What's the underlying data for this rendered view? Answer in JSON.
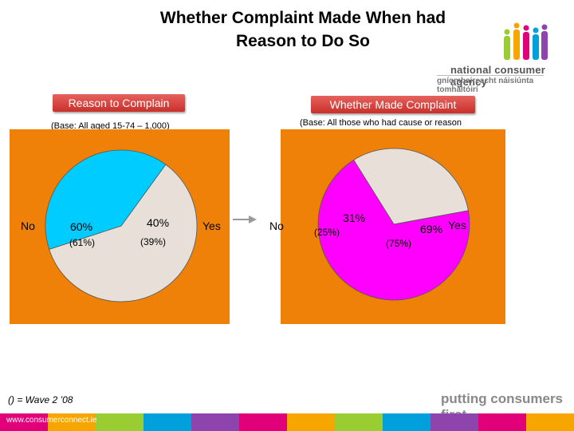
{
  "page": {
    "title_line1": "Whether Complaint Made When had",
    "title_line2": "Reason to Do So",
    "logo_line1": "national consumer agency",
    "logo_line2": "gníomhaireacht náisiúnta tomhaltóirí",
    "footnote": "() = Wave 2 ’08",
    "tagline": "putting consumers first",
    "url": "www.consumerconnect.ie",
    "arrow_icon": "right-arrow-icon"
  },
  "colors": {
    "panel": "#f08108",
    "no_slice": "#e8e0d8",
    "yes_left": "#00ccff",
    "yes_right": "#ff00ff"
  },
  "chart_data": [
    {
      "type": "pie",
      "title": "Reason to Complain",
      "base": "(Base: All aged 15-74 – 1,000)",
      "categories": [
        "No",
        "Yes"
      ],
      "values": [
        60,
        40
      ],
      "value_labels": [
        "60%",
        "40%"
      ],
      "previous_labels": [
        "(61%)",
        "(39%)"
      ],
      "legend": "none"
    },
    {
      "type": "pie",
      "title": "Whether Made Complaint",
      "base": "(Base: All those who had cause or reason",
      "categories": [
        "No",
        "Yes"
      ],
      "values": [
        31,
        69
      ],
      "value_labels": [
        "31%",
        "69%"
      ],
      "previous_labels": [
        "(25%)",
        "(75%)"
      ],
      "legend": "none"
    }
  ]
}
